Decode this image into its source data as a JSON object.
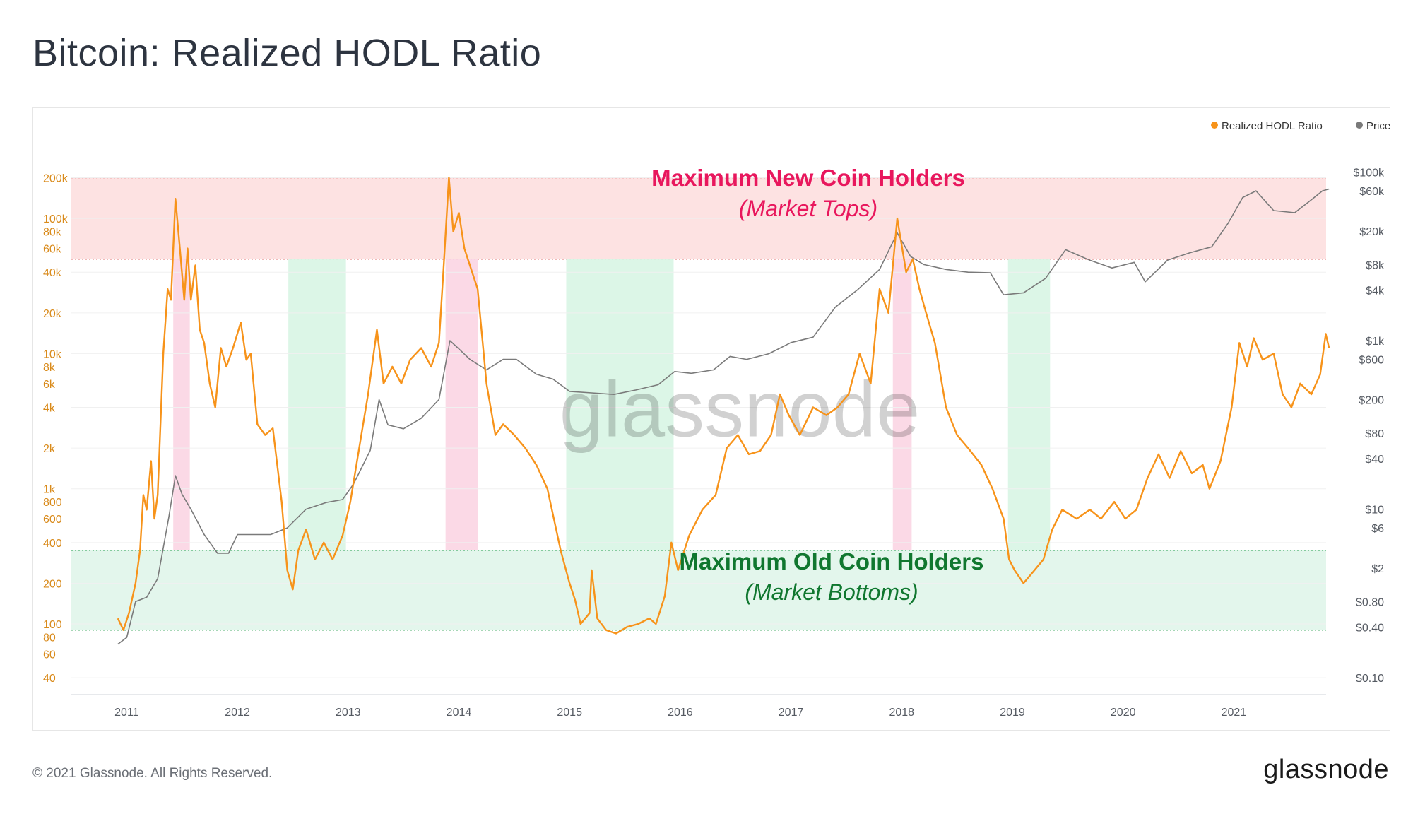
{
  "page": {
    "title": "Bitcoin: Realized HODL Ratio",
    "copyright": "© 2021 Glassnode. All Rights Reserved.",
    "logo": "glassnode",
    "watermark": "glassnode"
  },
  "legend": {
    "items": [
      {
        "label": "Realized HODL Ratio",
        "color": "#f7931a"
      },
      {
        "label": "Price [USD]",
        "color": "#7a7a7a"
      }
    ]
  },
  "annotations": {
    "top_title": "Maximum New Coin Holders",
    "top_sub": "(Market Tops)",
    "bottom_title": "Maximum Old Coin Holders",
    "bottom_sub": "(Market Bottoms)",
    "top_color": "#e8175d",
    "bottom_color": "#10772f"
  },
  "chart_data": {
    "type": "line",
    "x_ticks": [
      "2011",
      "2012",
      "2013",
      "2014",
      "2015",
      "2016",
      "2017",
      "2018",
      "2019",
      "2020",
      "2021"
    ],
    "x_range": [
      "2010-07",
      "2021-11"
    ],
    "left_axis": {
      "scale": "log",
      "range": [
        30,
        250000
      ],
      "ticks": [
        {
          "label": "40",
          "value": 40
        },
        {
          "label": "60",
          "value": 60
        },
        {
          "label": "80",
          "value": 80
        },
        {
          "label": "100",
          "value": 100
        },
        {
          "label": "200",
          "value": 200
        },
        {
          "label": "400",
          "value": 400
        },
        {
          "label": "600",
          "value": 600
        },
        {
          "label": "800",
          "value": 800
        },
        {
          "label": "1k",
          "value": 1000
        },
        {
          "label": "2k",
          "value": 2000
        },
        {
          "label": "4k",
          "value": 4000
        },
        {
          "label": "6k",
          "value": 6000
        },
        {
          "label": "8k",
          "value": 8000
        },
        {
          "label": "10k",
          "value": 10000
        },
        {
          "label": "20k",
          "value": 20000
        },
        {
          "label": "40k",
          "value": 40000
        },
        {
          "label": "60k",
          "value": 60000
        },
        {
          "label": "80k",
          "value": 80000
        },
        {
          "label": "100k",
          "value": 100000
        },
        {
          "label": "200k",
          "value": 200000
        }
      ]
    },
    "right_axis": {
      "scale": "log",
      "ticks": [
        {
          "label": "$0.10",
          "value": 0.1
        },
        {
          "label": "$0.40",
          "value": 0.4
        },
        {
          "label": "$0.80",
          "value": 0.8
        },
        {
          "label": "$2",
          "value": 2
        },
        {
          "label": "$6",
          "value": 6
        },
        {
          "label": "$10",
          "value": 10
        },
        {
          "label": "$40",
          "value": 40
        },
        {
          "label": "$80",
          "value": 80
        },
        {
          "label": "$200",
          "value": 200
        },
        {
          "label": "$600",
          "value": 600
        },
        {
          "label": "$1k",
          "value": 1000
        },
        {
          "label": "$4k",
          "value": 4000
        },
        {
          "label": "$8k",
          "value": 8000
        },
        {
          "label": "$20k",
          "value": 20000
        },
        {
          "label": "$60k",
          "value": 60000
        },
        {
          "label": "$100k",
          "value": 100000
        }
      ]
    },
    "zones": {
      "top": {
        "from": 50000,
        "to": 200000,
        "color": "#fde2e2"
      },
      "bottom": {
        "from": 90,
        "to": 350,
        "color": "#e3f6ec"
      }
    },
    "vertical_bands": [
      {
        "from": 2011.42,
        "to": 2011.57,
        "color": "#fbd5e3"
      },
      {
        "from": 2012.46,
        "to": 2012.98,
        "color": "#d8f5e4"
      },
      {
        "from": 2013.88,
        "to": 2014.17,
        "color": "#fbd5e3"
      },
      {
        "from": 2014.97,
        "to": 2015.94,
        "color": "#d8f5e4"
      },
      {
        "from": 2017.92,
        "to": 2018.09,
        "color": "#fbd5e3"
      },
      {
        "from": 2018.96,
        "to": 2019.34,
        "color": "#d8f5e4"
      }
    ],
    "series": [
      {
        "name": "Realized HODL Ratio",
        "color": "#f7931a",
        "axis": "left",
        "points": [
          [
            2010.92,
            110
          ],
          [
            2010.97,
            90
          ],
          [
            2011.02,
            120
          ],
          [
            2011.08,
            200
          ],
          [
            2011.12,
            350
          ],
          [
            2011.15,
            900
          ],
          [
            2011.18,
            700
          ],
          [
            2011.22,
            1600
          ],
          [
            2011.25,
            600
          ],
          [
            2011.28,
            900
          ],
          [
            2011.33,
            10000
          ],
          [
            2011.37,
            30000
          ],
          [
            2011.4,
            25000
          ],
          [
            2011.44,
            140000
          ],
          [
            2011.48,
            60000
          ],
          [
            2011.52,
            25000
          ],
          [
            2011.55,
            60000
          ],
          [
            2011.58,
            25000
          ],
          [
            2011.62,
            45000
          ],
          [
            2011.66,
            15000
          ],
          [
            2011.7,
            12000
          ],
          [
            2011.75,
            6000
          ],
          [
            2011.8,
            4000
          ],
          [
            2011.85,
            11000
          ],
          [
            2011.9,
            8000
          ],
          [
            2011.96,
            11000
          ],
          [
            2012.03,
            17000
          ],
          [
            2012.08,
            9000
          ],
          [
            2012.12,
            10000
          ],
          [
            2012.18,
            3000
          ],
          [
            2012.25,
            2500
          ],
          [
            2012.32,
            2800
          ],
          [
            2012.4,
            800
          ],
          [
            2012.45,
            250
          ],
          [
            2012.5,
            180
          ],
          [
            2012.55,
            350
          ],
          [
            2012.62,
            500
          ],
          [
            2012.7,
            300
          ],
          [
            2012.78,
            400
          ],
          [
            2012.86,
            300
          ],
          [
            2012.95,
            450
          ],
          [
            2013.02,
            800
          ],
          [
            2013.1,
            2000
          ],
          [
            2013.18,
            5000
          ],
          [
            2013.26,
            15000
          ],
          [
            2013.32,
            6000
          ],
          [
            2013.4,
            8000
          ],
          [
            2013.48,
            6000
          ],
          [
            2013.56,
            9000
          ],
          [
            2013.66,
            11000
          ],
          [
            2013.75,
            8000
          ],
          [
            2013.82,
            12000
          ],
          [
            2013.86,
            40000
          ],
          [
            2013.91,
            200000
          ],
          [
            2013.95,
            80000
          ],
          [
            2014.0,
            110000
          ],
          [
            2014.05,
            60000
          ],
          [
            2014.1,
            45000
          ],
          [
            2014.17,
            30000
          ],
          [
            2014.25,
            6000
          ],
          [
            2014.33,
            2500
          ],
          [
            2014.4,
            3000
          ],
          [
            2014.5,
            2500
          ],
          [
            2014.6,
            2000
          ],
          [
            2014.7,
            1500
          ],
          [
            2014.8,
            1000
          ],
          [
            2014.92,
            350
          ],
          [
            2015.0,
            200
          ],
          [
            2015.05,
            150
          ],
          [
            2015.1,
            100
          ],
          [
            2015.18,
            120
          ],
          [
            2015.2,
            250
          ],
          [
            2015.25,
            110
          ],
          [
            2015.33,
            90
          ],
          [
            2015.42,
            85
          ],
          [
            2015.52,
            95
          ],
          [
            2015.62,
            100
          ],
          [
            2015.72,
            110
          ],
          [
            2015.78,
            100
          ],
          [
            2015.86,
            160
          ],
          [
            2015.92,
            400
          ],
          [
            2015.98,
            250
          ],
          [
            2016.08,
            450
          ],
          [
            2016.2,
            700
          ],
          [
            2016.32,
            900
          ],
          [
            2016.42,
            2000
          ],
          [
            2016.52,
            2500
          ],
          [
            2016.62,
            1800
          ],
          [
            2016.72,
            1900
          ],
          [
            2016.82,
            2500
          ],
          [
            2016.9,
            5000
          ],
          [
            2016.98,
            3500
          ],
          [
            2017.08,
            2500
          ],
          [
            2017.2,
            4000
          ],
          [
            2017.32,
            3500
          ],
          [
            2017.42,
            4000
          ],
          [
            2017.52,
            5000
          ],
          [
            2017.62,
            10000
          ],
          [
            2017.72,
            6000
          ],
          [
            2017.8,
            30000
          ],
          [
            2017.88,
            20000
          ],
          [
            2017.96,
            100000
          ],
          [
            2018.04,
            40000
          ],
          [
            2018.1,
            50000
          ],
          [
            2018.16,
            30000
          ],
          [
            2018.22,
            20000
          ],
          [
            2018.3,
            12000
          ],
          [
            2018.4,
            4000
          ],
          [
            2018.5,
            2500
          ],
          [
            2018.6,
            2000
          ],
          [
            2018.72,
            1500
          ],
          [
            2018.82,
            1000
          ],
          [
            2018.92,
            600
          ],
          [
            2018.97,
            300
          ],
          [
            2019.02,
            250
          ],
          [
            2019.1,
            200
          ],
          [
            2019.2,
            250
          ],
          [
            2019.28,
            300
          ],
          [
            2019.36,
            500
          ],
          [
            2019.45,
            700
          ],
          [
            2019.58,
            600
          ],
          [
            2019.7,
            700
          ],
          [
            2019.8,
            600
          ],
          [
            2019.92,
            800
          ],
          [
            2020.02,
            600
          ],
          [
            2020.12,
            700
          ],
          [
            2020.22,
            1200
          ],
          [
            2020.32,
            1800
          ],
          [
            2020.42,
            1200
          ],
          [
            2020.52,
            1900
          ],
          [
            2020.62,
            1300
          ],
          [
            2020.72,
            1500
          ],
          [
            2020.78,
            1000
          ],
          [
            2020.88,
            1600
          ],
          [
            2020.98,
            4000
          ],
          [
            2021.05,
            12000
          ],
          [
            2021.12,
            8000
          ],
          [
            2021.18,
            13000
          ],
          [
            2021.26,
            9000
          ],
          [
            2021.36,
            10000
          ],
          [
            2021.44,
            5000
          ],
          [
            2021.52,
            4000
          ],
          [
            2021.6,
            6000
          ],
          [
            2021.7,
            5000
          ],
          [
            2021.78,
            7000
          ],
          [
            2021.83,
            14000
          ],
          [
            2021.86,
            11000
          ]
        ]
      },
      {
        "name": "Price [USD]",
        "color": "#7a7a7a",
        "axis": "right",
        "points": [
          [
            2010.92,
            0.25
          ],
          [
            2011.0,
            0.3
          ],
          [
            2011.08,
            0.8
          ],
          [
            2011.18,
            0.9
          ],
          [
            2011.28,
            1.5
          ],
          [
            2011.38,
            8
          ],
          [
            2011.44,
            25
          ],
          [
            2011.5,
            15
          ],
          [
            2011.58,
            10
          ],
          [
            2011.7,
            5
          ],
          [
            2011.82,
            3
          ],
          [
            2011.92,
            3
          ],
          [
            2012.0,
            5
          ],
          [
            2012.12,
            5
          ],
          [
            2012.3,
            5
          ],
          [
            2012.45,
            6
          ],
          [
            2012.62,
            10
          ],
          [
            2012.8,
            12
          ],
          [
            2012.95,
            13
          ],
          [
            2013.05,
            20
          ],
          [
            2013.2,
            50
          ],
          [
            2013.28,
            200
          ],
          [
            2013.36,
            100
          ],
          [
            2013.5,
            90
          ],
          [
            2013.66,
            120
          ],
          [
            2013.82,
            200
          ],
          [
            2013.92,
            1000
          ],
          [
            2014.0,
            800
          ],
          [
            2014.1,
            600
          ],
          [
            2014.25,
            450
          ],
          [
            2014.4,
            600
          ],
          [
            2014.52,
            600
          ],
          [
            2014.7,
            400
          ],
          [
            2014.85,
            350
          ],
          [
            2015.0,
            250
          ],
          [
            2015.2,
            240
          ],
          [
            2015.4,
            230
          ],
          [
            2015.6,
            260
          ],
          [
            2015.8,
            300
          ],
          [
            2015.95,
            430
          ],
          [
            2016.1,
            410
          ],
          [
            2016.3,
            450
          ],
          [
            2016.45,
            650
          ],
          [
            2016.6,
            600
          ],
          [
            2016.8,
            700
          ],
          [
            2017.0,
            950
          ],
          [
            2017.2,
            1100
          ],
          [
            2017.4,
            2500
          ],
          [
            2017.6,
            4000
          ],
          [
            2017.8,
            7000
          ],
          [
            2017.96,
            19000
          ],
          [
            2018.08,
            10000
          ],
          [
            2018.2,
            8000
          ],
          [
            2018.4,
            7000
          ],
          [
            2018.6,
            6500
          ],
          [
            2018.8,
            6400
          ],
          [
            2018.92,
            3500
          ],
          [
            2019.1,
            3700
          ],
          [
            2019.3,
            5500
          ],
          [
            2019.48,
            12000
          ],
          [
            2019.7,
            9000
          ],
          [
            2019.9,
            7300
          ],
          [
            2020.1,
            8500
          ],
          [
            2020.2,
            5000
          ],
          [
            2020.4,
            9000
          ],
          [
            2020.6,
            11000
          ],
          [
            2020.8,
            13000
          ],
          [
            2020.95,
            25000
          ],
          [
            2021.08,
            50000
          ],
          [
            2021.2,
            60000
          ],
          [
            2021.36,
            35000
          ],
          [
            2021.55,
            33000
          ],
          [
            2021.7,
            47000
          ],
          [
            2021.8,
            60000
          ],
          [
            2021.86,
            63000
          ]
        ]
      }
    ]
  }
}
